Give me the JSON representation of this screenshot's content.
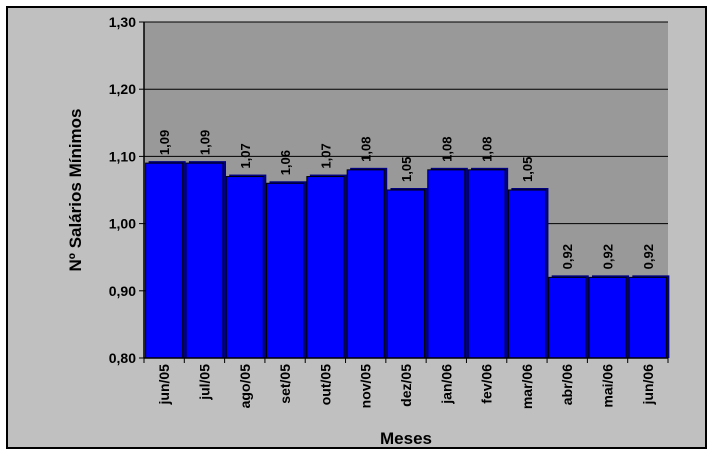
{
  "chart_data": {
    "type": "bar",
    "title": "",
    "xlabel": "Meses",
    "ylabel": "Nº Salários Mínimos",
    "categories": [
      "jun/05",
      "jul/05",
      "ago/05",
      "set/05",
      "out/05",
      "nov/05",
      "dez/05",
      "jan/06",
      "fev/06",
      "mar/06",
      "abr/06",
      "mai/06",
      "jun/06"
    ],
    "values": [
      1.09,
      1.09,
      1.07,
      1.06,
      1.07,
      1.08,
      1.05,
      1.08,
      1.08,
      1.05,
      0.92,
      0.92,
      0.92
    ],
    "value_labels": [
      "1,09",
      "1,09",
      "1,07",
      "1,06",
      "1,07",
      "1,08",
      "1,05",
      "1,08",
      "1,08",
      "1,05",
      "0,92",
      "0,92",
      "0,92"
    ],
    "ylim": [
      0.8,
      1.3
    ],
    "yticks": [
      0.8,
      0.9,
      1.0,
      1.1,
      1.2,
      1.3
    ],
    "ytick_labels": [
      "0,80",
      "0,90",
      "1,00",
      "1,10",
      "1,20",
      "1,30"
    ],
    "grid": true,
    "legend": "none",
    "colors": {
      "bar": "#0000ff",
      "bar_shadow": "#000080",
      "plot_bg": "#999999",
      "chart_bg": "#c0c0c0",
      "grid": "#000000"
    }
  }
}
